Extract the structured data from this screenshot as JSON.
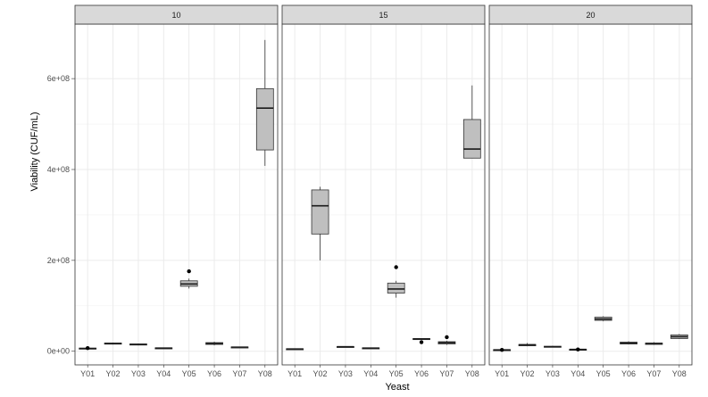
{
  "chart_data": {
    "type": "boxplot",
    "xlabel": "Yeast",
    "ylabel": "Viability (CUF/mL)",
    "ylim": [
      -30000000,
      720000000
    ],
    "y_ticks": [
      {
        "value": 0,
        "label": "0e+00"
      },
      {
        "value": 200000000,
        "label": "2e+08"
      },
      {
        "value": 400000000,
        "label": "4e+08"
      },
      {
        "value": 600000000,
        "label": "6e+08"
      }
    ],
    "categories": [
      "Y01",
      "Y02",
      "Y03",
      "Y04",
      "Y05",
      "Y06",
      "Y07",
      "Y08"
    ],
    "grid": true,
    "facets": [
      {
        "label": "10",
        "boxes": [
          {
            "x": "Y01",
            "min": 4000000,
            "q1": 5000000,
            "median": 6000000,
            "q3": 7000000,
            "max": 8000000,
            "outliers": [
              7000000
            ]
          },
          {
            "x": "Y02",
            "min": 15000000,
            "q1": 16000000,
            "median": 17000000,
            "q3": 18000000,
            "max": 19000000,
            "outliers": []
          },
          {
            "x": "Y03",
            "min": 13000000,
            "q1": 14000000,
            "median": 15000000,
            "q3": 16000000,
            "max": 17000000,
            "outliers": []
          },
          {
            "x": "Y04",
            "min": 6000000,
            "q1": 6500000,
            "median": 7000000,
            "q3": 7500000,
            "max": 8000000,
            "outliers": []
          },
          {
            "x": "Y05",
            "min": 138000000,
            "q1": 143000000,
            "median": 148000000,
            "q3": 155000000,
            "max": 160000000,
            "outliers": [
              176000000
            ]
          },
          {
            "x": "Y06",
            "min": 13000000,
            "q1": 15000000,
            "median": 17000000,
            "q3": 19000000,
            "max": 21000000,
            "outliers": []
          },
          {
            "x": "Y07",
            "min": 8000000,
            "q1": 8500000,
            "median": 9000000,
            "q3": 9500000,
            "max": 10000000,
            "outliers": []
          },
          {
            "x": "Y08",
            "min": 408000000,
            "q1": 443000000,
            "median": 535000000,
            "q3": 578000000,
            "max": 685000000,
            "outliers": []
          }
        ]
      },
      {
        "label": "15",
        "boxes": [
          {
            "x": "Y01",
            "min": 4000000,
            "q1": 4500000,
            "median": 5000000,
            "q3": 5500000,
            "max": 6000000,
            "outliers": []
          },
          {
            "x": "Y02",
            "min": 200000000,
            "q1": 258000000,
            "median": 320000000,
            "q3": 355000000,
            "max": 362000000,
            "outliers": []
          },
          {
            "x": "Y03",
            "min": 9000000,
            "q1": 9500000,
            "median": 10000000,
            "q3": 10500000,
            "max": 11000000,
            "outliers": []
          },
          {
            "x": "Y04",
            "min": 6000000,
            "q1": 6500000,
            "median": 7000000,
            "q3": 7500000,
            "max": 8000000,
            "outliers": []
          },
          {
            "x": "Y05",
            "min": 118000000,
            "q1": 128000000,
            "median": 137000000,
            "q3": 150000000,
            "max": 155000000,
            "outliers": [
              185000000
            ]
          },
          {
            "x": "Y06",
            "min": 25000000,
            "q1": 26000000,
            "median": 27000000,
            "q3": 28000000,
            "max": 29000000,
            "outliers": [
              20000000
            ]
          },
          {
            "x": "Y07",
            "min": 14000000,
            "q1": 16000000,
            "median": 19000000,
            "q3": 21000000,
            "max": 23000000,
            "outliers": [
              31000000
            ]
          },
          {
            "x": "Y08",
            "min": 425000000,
            "q1": 425000000,
            "median": 445000000,
            "q3": 510000000,
            "max": 585000000,
            "outliers": []
          }
        ]
      },
      {
        "label": "20",
        "boxes": [
          {
            "x": "Y01",
            "min": 2000000,
            "q1": 2500000,
            "median": 3000000,
            "q3": 3500000,
            "max": 4000000,
            "outliers": [
              3000000
            ]
          },
          {
            "x": "Y02",
            "min": 11000000,
            "q1": 12000000,
            "median": 14000000,
            "q3": 15000000,
            "max": 18000000,
            "outliers": []
          },
          {
            "x": "Y03",
            "min": 9000000,
            "q1": 9500000,
            "median": 10000000,
            "q3": 11000000,
            "max": 12000000,
            "outliers": []
          },
          {
            "x": "Y04",
            "min": 3000000,
            "q1": 3500000,
            "median": 4000000,
            "q3": 4500000,
            "max": 5000000,
            "outliers": [
              4000000
            ]
          },
          {
            "x": "Y05",
            "min": 66000000,
            "q1": 68000000,
            "median": 71000000,
            "q3": 75000000,
            "max": 77000000,
            "outliers": []
          },
          {
            "x": "Y06",
            "min": 15000000,
            "q1": 16000000,
            "median": 18000000,
            "q3": 20000000,
            "max": 22000000,
            "outliers": []
          },
          {
            "x": "Y07",
            "min": 14000000,
            "q1": 15000000,
            "median": 17000000,
            "q3": 18000000,
            "max": 20000000,
            "outliers": []
          },
          {
            "x": "Y08",
            "min": 27000000,
            "q1": 28000000,
            "median": 32000000,
            "q3": 36000000,
            "max": 38000000,
            "outliers": []
          }
        ]
      }
    ],
    "colors": {
      "box_fill": "#bfbfbf",
      "strip_fill": "#d9d9d9",
      "outline": "#333333",
      "grid": "#ebebeb",
      "text": "#4d4d4d"
    }
  }
}
